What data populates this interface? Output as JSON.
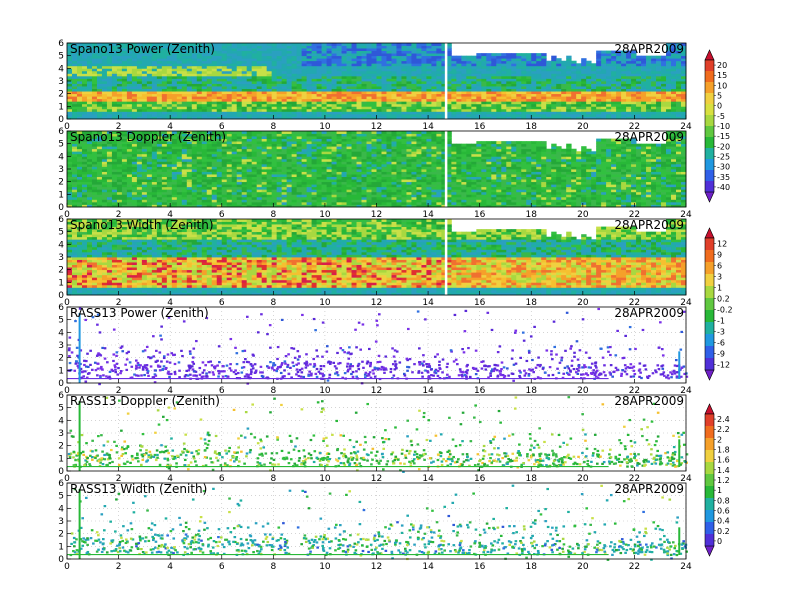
{
  "chart_data": [
    {
      "type": "heatmap",
      "title": "Spano13 Power (Zenith)",
      "date": "28APR2009",
      "x_ticks": [
        "0",
        "2",
        "4",
        "6",
        "8",
        "10",
        "12",
        "14",
        "16",
        "18",
        "20",
        "22",
        "24"
      ],
      "y_ticks": [
        "0",
        "1",
        "2",
        "3",
        "4",
        "5",
        "6"
      ],
      "xlim": [
        0,
        24
      ],
      "ylim": [
        0,
        6
      ],
      "colorbar": "power"
    },
    {
      "type": "heatmap",
      "title": "Spano13 Doppler (Zenith)",
      "date": "28APR2009",
      "x_ticks": [
        "0",
        "2",
        "4",
        "6",
        "8",
        "10",
        "12",
        "14",
        "16",
        "18",
        "20",
        "22",
        "24"
      ],
      "y_ticks": [
        "0",
        "1",
        "2",
        "3",
        "4",
        "5",
        "6"
      ],
      "xlim": [
        0,
        24
      ],
      "ylim": [
        0,
        6
      ],
      "colorbar": "power"
    },
    {
      "type": "heatmap",
      "title": "Spano13 Width (Zenith)",
      "date": "28APR2009",
      "x_ticks": [
        "0",
        "2",
        "4",
        "6",
        "8",
        "10",
        "12",
        "14",
        "16",
        "18",
        "20",
        "22",
        "24"
      ],
      "y_ticks": [
        "0",
        "1",
        "2",
        "3",
        "4",
        "5",
        "6"
      ],
      "xlim": [
        0,
        24
      ],
      "ylim": [
        0,
        6
      ],
      "colorbar": "doppler"
    },
    {
      "type": "scatter",
      "title": "RASS13 Power (Zenith)",
      "date": "28APR2009",
      "x_ticks": [
        "0",
        "2",
        "4",
        "6",
        "8",
        "10",
        "12",
        "14",
        "16",
        "18",
        "20",
        "22",
        "24"
      ],
      "y_ticks": [
        "0",
        "1",
        "2",
        "3",
        "4",
        "5",
        "6"
      ],
      "xlim": [
        0,
        24
      ],
      "ylim": [
        0,
        6
      ],
      "colorbar": "doppler"
    },
    {
      "type": "scatter",
      "title": "RASS13 Doppler (Zenith)",
      "date": "28APR2009",
      "x_ticks": [
        "0",
        "2",
        "4",
        "6",
        "8",
        "10",
        "12",
        "14",
        "16",
        "18",
        "20",
        "22",
        "24"
      ],
      "y_ticks": [
        "0",
        "1",
        "2",
        "3",
        "4",
        "5",
        "6"
      ],
      "xlim": [
        0,
        24
      ],
      "ylim": [
        0,
        6
      ],
      "colorbar": "width"
    },
    {
      "type": "scatter",
      "title": "RASS13 Width (Zenith)",
      "date": "28APR2009",
      "x_ticks": [
        "0",
        "2",
        "4",
        "6",
        "8",
        "10",
        "12",
        "14",
        "16",
        "18",
        "20",
        "22",
        "24"
      ],
      "y_ticks": [
        "0",
        "1",
        "2",
        "3",
        "4",
        "5",
        "6"
      ],
      "xlim": [
        0,
        24
      ],
      "ylim": [
        0,
        6
      ],
      "colorbar": "width"
    }
  ],
  "colorbars": {
    "power": {
      "labels": [
        "20",
        "15",
        "10",
        "5",
        "0",
        "-5",
        "-10",
        "-15",
        "-20",
        "-25",
        "-30",
        "-35",
        "-40"
      ],
      "colors": [
        "#c8102e",
        "#e0402a",
        "#f06c1e",
        "#f5a02a",
        "#f0d040",
        "#d8e040",
        "#a8d840",
        "#60c840",
        "#28b838",
        "#20b0a0",
        "#2098e0",
        "#3060e8",
        "#5030d8",
        "#7020c8"
      ]
    },
    "doppler": {
      "labels": [
        "12",
        "9",
        "6",
        "3",
        "1",
        "0.2",
        "-0.2",
        "-1",
        "-3",
        "-6",
        "-9",
        "-12"
      ],
      "colors": [
        "#c8102e",
        "#e0402a",
        "#f06c1e",
        "#f5a02a",
        "#f0d040",
        "#a8d840",
        "#60c840",
        "#28b838",
        "#20b0a0",
        "#2098e0",
        "#3060e8",
        "#5030d8",
        "#7020c8"
      ]
    },
    "width": {
      "labels": [
        "2.4",
        "2.2",
        "2",
        "1.8",
        "1.6",
        "1.4",
        "1.2",
        "1",
        "0.8",
        "0.6",
        "0.4",
        "0.2",
        "0"
      ],
      "colors": [
        "#c8102e",
        "#e0402a",
        "#f06c1e",
        "#f5a02a",
        "#f0d040",
        "#a8d840",
        "#60c840",
        "#28b838",
        "#20b0a0",
        "#2098e0",
        "#3060e8",
        "#5030d8",
        "#7020c8"
      ]
    }
  }
}
